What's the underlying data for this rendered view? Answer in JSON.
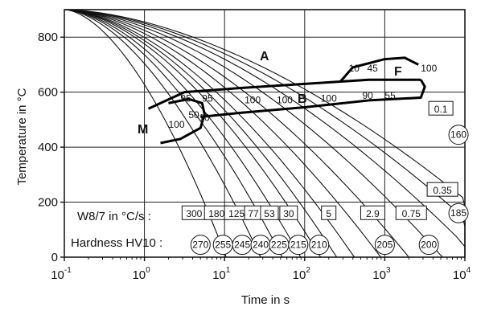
{
  "diagram": {
    "y_axis_label": "Temperature in °C",
    "x_axis_label": "Time in s",
    "y_ticks": [
      {
        "value": 0,
        "label": "0"
      },
      {
        "value": 200,
        "label": "200"
      },
      {
        "value": 400,
        "label": "400"
      },
      {
        "value": 600,
        "label": "600"
      },
      {
        "value": 800,
        "label": "800"
      }
    ],
    "x_ticks": [
      {
        "value": -1,
        "base": "10",
        "exp": "-1"
      },
      {
        "value": 0,
        "base": "10",
        "exp": "0"
      },
      {
        "value": 1,
        "base": "10",
        "exp": "1"
      },
      {
        "value": 2,
        "base": "10",
        "exp": "2"
      },
      {
        "value": 3,
        "base": "10",
        "exp": "3"
      },
      {
        "value": 4,
        "base": "10",
        "exp": "4"
      }
    ],
    "regions": {
      "austenite": "A",
      "bainite": "B",
      "ferrite": "F",
      "martensite": "M"
    },
    "percent_labels": [
      {
        "text": "95",
        "t": 0.45,
        "T": 565
      },
      {
        "text": "95",
        "t": 0.72,
        "T": 565
      },
      {
        "text": "50",
        "t": 0.55,
        "T": 505
      },
      {
        "text": "10",
        "t": 0.68,
        "T": 495
      },
      {
        "text": "100",
        "t": 0.3,
        "T": 470
      },
      {
        "text": "100",
        "t": 1.25,
        "T": 560
      },
      {
        "text": "100",
        "t": 1.65,
        "T": 560
      },
      {
        "text": "100",
        "t": 2.2,
        "T": 565
      },
      {
        "text": "90",
        "t": 2.72,
        "T": 575
      },
      {
        "text": "55",
        "t": 3.0,
        "T": 575
      },
      {
        "text": "10",
        "t": 2.55,
        "T": 675
      },
      {
        "text": "45",
        "t": 2.78,
        "T": 675
      },
      {
        "text": "100",
        "t": 3.45,
        "T": 675
      }
    ],
    "cooling_rate_label": "W8/7 in °C/s :",
    "hardness_label": "Hardness HV10 :",
    "cooling_rates": [
      {
        "text": "300",
        "t": 0.62,
        "T": 160
      },
      {
        "text": "180",
        "t": 0.9,
        "T": 160
      },
      {
        "text": "125",
        "t": 1.15,
        "T": 160
      },
      {
        "text": "77",
        "t": 1.36,
        "T": 160
      },
      {
        "text": "53",
        "t": 1.56,
        "T": 160
      },
      {
        "text": "30",
        "t": 1.8,
        "T": 160
      },
      {
        "text": "5",
        "t": 2.3,
        "T": 160
      },
      {
        "text": "2.9",
        "t": 2.85,
        "T": 160
      },
      {
        "text": "0.75",
        "t": 3.33,
        "T": 160
      },
      {
        "text": "0.35",
        "t": 3.72,
        "T": 245
      },
      {
        "text": "0.1",
        "t": 3.7,
        "T": 540
      }
    ],
    "hardness_values": [
      {
        "text": "270",
        "t": 0.7,
        "T": 45
      },
      {
        "text": "255",
        "t": 0.98,
        "T": 45
      },
      {
        "text": "245",
        "t": 1.22,
        "T": 45
      },
      {
        "text": "240",
        "t": 1.45,
        "T": 45
      },
      {
        "text": "225",
        "t": 1.68,
        "T": 45
      },
      {
        "text": "215",
        "t": 1.92,
        "T": 45
      },
      {
        "text": "210",
        "t": 2.18,
        "T": 45
      },
      {
        "text": "205",
        "t": 3.0,
        "T": 45
      },
      {
        "text": "200",
        "t": 3.55,
        "T": 45
      },
      {
        "text": "185",
        "t": 3.92,
        "T": 160
      },
      {
        "text": "160",
        "t": 3.92,
        "T": 445
      }
    ],
    "axis_ranges": {
      "log_time": [
        -1,
        4
      ],
      "temperature": [
        0,
        900
      ]
    }
  }
}
